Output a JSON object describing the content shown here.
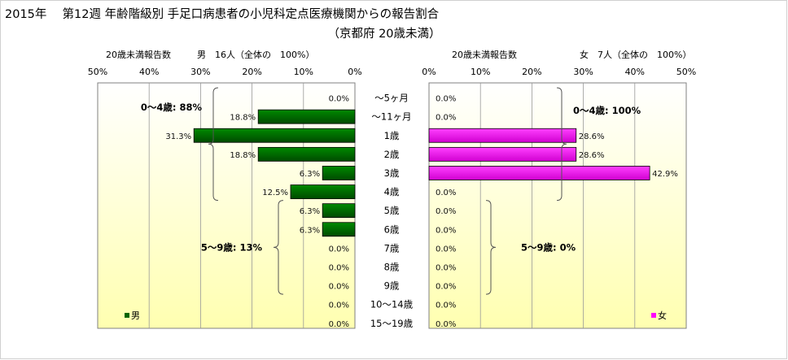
{
  "title": "2015年　 第12週 年齢階級別 手足口病患者の小児科定点医療機関からの報告割合",
  "subtitle": "（京都府 20歳未満）",
  "colors": {
    "male": "#006400",
    "female": "#ff00ff",
    "grid": "#999999"
  },
  "chart_data": {
    "type": "bar",
    "categories": [
      "～5ヶ月",
      "～11ヶ月",
      "1歳",
      "2歳",
      "3歳",
      "4歳",
      "5歳",
      "6歳",
      "7歳",
      "8歳",
      "9歳",
      "10～14歳",
      "15～19歳"
    ],
    "xlim": [
      0,
      50
    ],
    "ticks": [
      "0%",
      "10%",
      "20%",
      "30%",
      "40%",
      "50%"
    ],
    "series": [
      {
        "name": "男",
        "header_label": "20歳未満報告数",
        "header_total": "男　16人（全体の　100%）",
        "values": [
          0.0,
          18.8,
          31.3,
          18.8,
          6.3,
          12.5,
          6.3,
          6.3,
          0.0,
          0.0,
          0.0,
          0.0,
          0.0
        ],
        "labels": [
          "0.0%",
          "18.8%",
          "31.3%",
          "18.8%",
          "6.3%",
          "12.5%",
          "6.3%",
          "6.3%",
          "0.0%",
          "0.0%",
          "0.0%",
          "0.0%",
          "0.0%"
        ],
        "annotations": [
          {
            "text": "0～4歳: 88%",
            "from": 0,
            "to": 5
          },
          {
            "text": "5～9歳: 13%",
            "from": 6,
            "to": 10
          }
        ]
      },
      {
        "name": "女",
        "header_label": "20歳未満報告数",
        "header_total": "女　7人（全体の　100%）",
        "values": [
          0.0,
          0.0,
          28.6,
          28.6,
          42.9,
          0.0,
          0.0,
          0.0,
          0.0,
          0.0,
          0.0,
          0.0,
          0.0
        ],
        "labels": [
          "0.0%",
          "0.0%",
          "28.6%",
          "28.6%",
          "42.9%",
          "0.0%",
          "0.0%",
          "0.0%",
          "0.0%",
          "0.0%",
          "0.0%",
          "0.0%",
          "0.0%"
        ],
        "annotations": [
          {
            "text": "0～4歳: 100%",
            "from": 0,
            "to": 5
          },
          {
            "text": "5～9歳: 0%",
            "from": 6,
            "to": 10
          }
        ]
      }
    ]
  }
}
